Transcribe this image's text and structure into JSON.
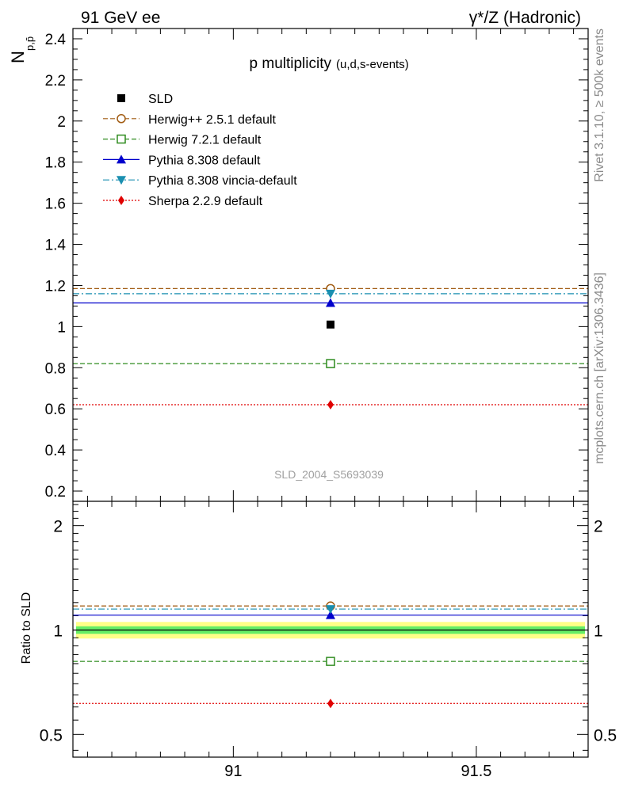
{
  "header": {
    "left": "91 GeV ee",
    "right": "γ*/Z (Hadronic)"
  },
  "side_labels": {
    "rivet": "Rivet 3.1.10, ≥ 500k events",
    "mcplots": "mcplots.cern.ch [arXiv:1306.3436]"
  },
  "watermark": "SLD_2004_S5693039",
  "chart_data": [
    {
      "type": "scatter",
      "title": "p multiplicity",
      "title_sub": "(u,d,s-events)",
      "ylabel": "N_{p,p̄}",
      "ylabel_main": "N",
      "ylabel_sub": "p,p̄",
      "xlim": [
        90.67,
        91.73
      ],
      "ylim": [
        0.15,
        2.45
      ],
      "x_bin": [
        90.67,
        91.73
      ],
      "x_center": 91.2,
      "yticks": [
        0.2,
        0.4,
        0.6,
        0.8,
        1,
        1.2,
        1.4,
        1.6,
        1.8,
        2,
        2.2,
        2.4
      ],
      "ytick_labels": [
        "0.2",
        "0.4",
        "0.6",
        "0.8",
        "1",
        "1.2",
        "1.4",
        "1.6",
        "1.8",
        "2",
        "2.2",
        "2.4"
      ],
      "legend_position": "top-left",
      "series": [
        {
          "name": "SLD",
          "kind": "data",
          "y": 1.01,
          "color": "#000000",
          "marker": "square-filled",
          "line": "none"
        },
        {
          "name": "Herwig++ 2.5.1 default",
          "kind": "mc",
          "y": 1.185,
          "color": "#a05a10",
          "marker": "circle-open",
          "line": "dashed"
        },
        {
          "name": "Herwig 7.2.1 default",
          "kind": "mc",
          "y": 0.82,
          "color": "#2e8b1e",
          "marker": "square-open",
          "line": "dashed"
        },
        {
          "name": "Pythia 8.308 default",
          "kind": "mc",
          "y": 1.115,
          "color": "#0000cc",
          "marker": "triangle-up-filled",
          "line": "solid"
        },
        {
          "name": "Pythia 8.308 vincia-default",
          "kind": "mc",
          "y": 1.16,
          "color": "#1a8fb0",
          "marker": "triangle-down-filled",
          "line": "dashdot"
        },
        {
          "name": "Sherpa 2.2.9 default",
          "kind": "mc",
          "y": 0.62,
          "color": "#e00000",
          "marker": "diamond-filled",
          "line": "dotted"
        }
      ]
    },
    {
      "type": "scatter",
      "title": "",
      "ylabel": "Ratio to SLD",
      "xlabel": "",
      "xlim": [
        90.67,
        91.73
      ],
      "ylim": [
        0.43,
        2.35
      ],
      "yscale": "log",
      "yticks": [
        0.5,
        1,
        2
      ],
      "ytick_labels": [
        "0.5",
        "1",
        "2"
      ],
      "xticks": [
        91,
        91.5
      ],
      "xtick_labels": [
        "91",
        "91.5"
      ],
      "band_inner": [
        0.975,
        1.025
      ],
      "band_outer": [
        0.945,
        1.055
      ],
      "band_inner_color": "#66ee66",
      "band_outer_color": "#ffff88",
      "series": [
        {
          "name": "Herwig++ 2.5.1 default",
          "y": 1.173,
          "color": "#a05a10",
          "marker": "circle-open",
          "line": "dashed"
        },
        {
          "name": "Herwig 7.2.1 default",
          "y": 0.812,
          "color": "#2e8b1e",
          "marker": "square-open",
          "line": "dashed"
        },
        {
          "name": "Pythia 8.308 default",
          "y": 1.104,
          "color": "#0000cc",
          "marker": "triangle-up-filled",
          "line": "solid"
        },
        {
          "name": "Pythia 8.308 vincia-default",
          "y": 1.149,
          "color": "#1a8fb0",
          "marker": "triangle-down-filled",
          "line": "dashdot"
        },
        {
          "name": "Sherpa 2.2.9 default",
          "y": 0.614,
          "color": "#e00000",
          "marker": "diamond-filled",
          "line": "dotted"
        }
      ]
    }
  ]
}
